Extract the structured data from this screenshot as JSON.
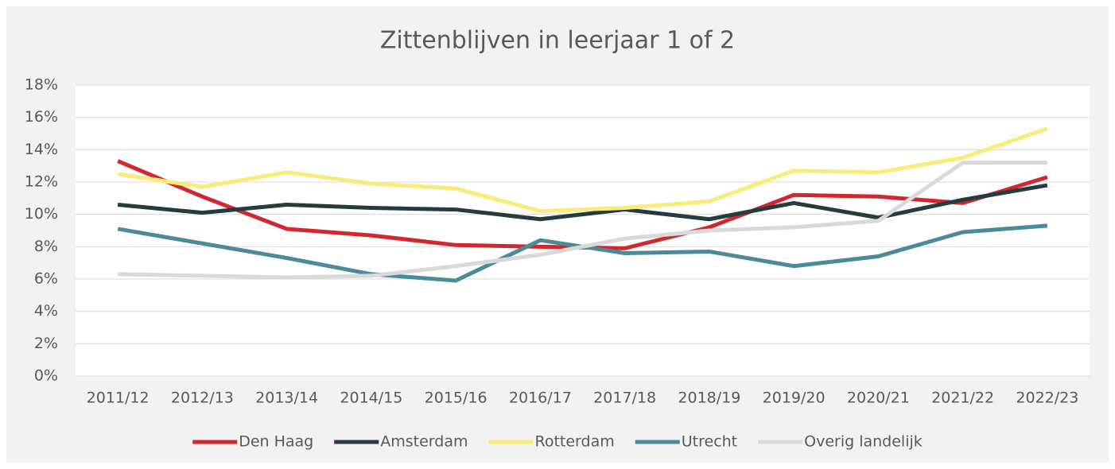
{
  "chart_data": {
    "type": "line",
    "title": "Zittenblijven in leerjaar 1 of 2",
    "categories": [
      "2011/12",
      "2012/13",
      "2013/14",
      "2014/15",
      "2015/16",
      "2016/17",
      "2017/18",
      "2018/19",
      "2019/20",
      "2020/21",
      "2021/22",
      "2022/23"
    ],
    "series": [
      {
        "name": "Den Haag",
        "color": "#d0282e",
        "values": [
          13.3,
          11.1,
          9.1,
          8.7,
          8.1,
          8.0,
          7.9,
          9.2,
          11.2,
          11.1,
          10.7,
          12.3
        ]
      },
      {
        "name": "Amsterdam",
        "color": "#243b40",
        "values": [
          10.6,
          10.1,
          10.6,
          10.4,
          10.3,
          9.7,
          10.3,
          9.7,
          10.7,
          9.8,
          10.9,
          11.8
        ]
      },
      {
        "name": "Rotterdam",
        "color": "#f9ec7a",
        "values": [
          12.5,
          11.7,
          12.6,
          11.9,
          11.6,
          10.2,
          10.4,
          10.8,
          12.7,
          12.6,
          13.5,
          15.3
        ]
      },
      {
        "name": "Utrecht",
        "color": "#4a8a99",
        "values": [
          9.1,
          8.2,
          7.3,
          6.3,
          5.9,
          8.4,
          7.6,
          7.7,
          6.8,
          7.4,
          8.9,
          9.3
        ]
      },
      {
        "name": "Overig landelijk",
        "color": "#d9d9d9",
        "values": [
          6.3,
          6.2,
          6.1,
          6.2,
          6.8,
          7.5,
          8.5,
          9.0,
          9.2,
          9.6,
          13.2,
          13.2
        ]
      }
    ],
    "ylim": [
      0,
      18
    ],
    "yticks": [
      {
        "value": 0,
        "label": "0%"
      },
      {
        "value": 2,
        "label": "2%"
      },
      {
        "value": 4,
        "label": "4%"
      },
      {
        "value": 6,
        "label": "6%"
      },
      {
        "value": 8,
        "label": "8%"
      },
      {
        "value": 10,
        "label": "10%"
      },
      {
        "value": 12,
        "label": "12%"
      },
      {
        "value": 14,
        "label": "14%"
      },
      {
        "value": 16,
        "label": "16%"
      },
      {
        "value": 18,
        "label": "18%"
      }
    ],
    "grid": true,
    "legend": "bottom"
  }
}
